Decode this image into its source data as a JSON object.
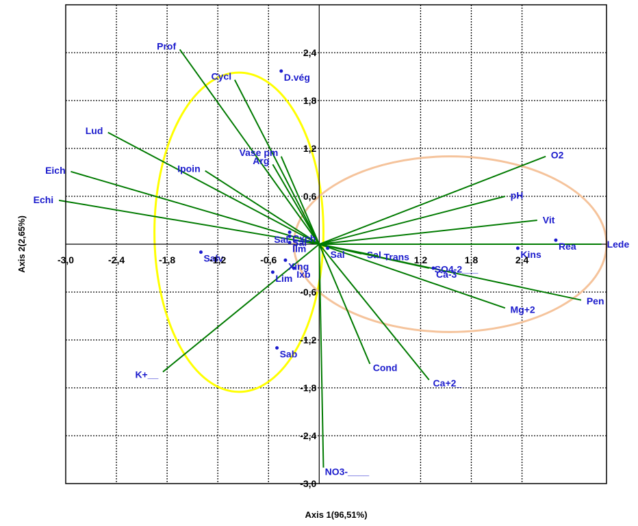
{
  "chart_data": {
    "type": "scatter",
    "subtype": "biplot",
    "xlabel": "Axis 1(96,51%)",
    "ylabel": "Axis 2(2,65%)",
    "xlim": [
      -3.0,
      3.4
    ],
    "ylim": [
      -3.0,
      3.0
    ],
    "x_ticks": [
      "-3,0",
      "-2,4",
      "-1,8",
      "-1,2",
      "-0,6",
      "1,2",
      "1,8",
      "2,4"
    ],
    "x_tick_values": [
      -3.0,
      -2.4,
      -1.8,
      -1.2,
      -0.6,
      1.2,
      1.8,
      2.4
    ],
    "y_ticks": [
      "2,4",
      "1,8",
      "1,2",
      "0,6",
      "-0,6",
      "-1,2",
      "-1,8",
      "-2,4",
      "-3,0"
    ],
    "y_tick_values": [
      2.4,
      1.8,
      1.2,
      0.6,
      -0.6,
      -1.2,
      -1.8,
      -2.4,
      -3.0
    ],
    "grid": true,
    "line_color": "#007a00",
    "label_color": "#1a1acc",
    "vectors": [
      {
        "label": "Prof",
        "x": -1.65,
        "y": 2.44
      },
      {
        "label": "Cycl",
        "x": -1.0,
        "y": 2.06
      },
      {
        "label": "Lud",
        "x": -2.5,
        "y": 1.4
      },
      {
        "label": "Eich",
        "x": -2.94,
        "y": 0.91
      },
      {
        "label": "Echi",
        "x": -3.08,
        "y": 0.55
      },
      {
        "label": "Ipoin",
        "x": -1.35,
        "y": 0.92
      },
      {
        "label": "Arg",
        "x": -0.55,
        "y": 1.0
      },
      {
        "label": "Vase pm",
        "x": -0.45,
        "y": 1.1
      },
      {
        "label": "O2",
        "x": 2.68,
        "y": 1.1
      },
      {
        "label": "pH",
        "x": 2.2,
        "y": 0.6
      },
      {
        "label": "Vit",
        "x": 2.58,
        "y": 0.3
      },
      {
        "label": "Lede",
        "x": 3.34,
        "y": 0.0
      },
      {
        "label": "Pen",
        "x": 3.1,
        "y": -0.7
      },
      {
        "label": "Mg+2",
        "x": 2.2,
        "y": -0.8
      },
      {
        "label": "Ca+2_",
        "x": 1.3,
        "y": -1.7
      },
      {
        "label": "Cond",
        "x": 0.6,
        "y": -1.5
      },
      {
        "label": "NO3-____",
        "x": 0.05,
        "y": -2.8
      },
      {
        "label": "K+__",
        "x": -1.85,
        "y": -1.6
      },
      {
        "label": "SO4-2___",
        "x": 1.3,
        "y": -0.3
      },
      {
        "label": "Sal",
        "x": 0.5,
        "y": -0.12
      },
      {
        "label": "Trans",
        "x": 0.7,
        "y": -0.15
      },
      {
        "label": "Sal",
        "x": -0.3,
        "y": 0.05
      }
    ],
    "points": [
      {
        "label": "D.vég",
        "x": -0.45,
        "y": 2.17
      },
      {
        "label": "Rea",
        "x": 2.8,
        "y": 0.05
      },
      {
        "label": "Kins",
        "x": 2.35,
        "y": -0.05
      },
      {
        "label": "Lim",
        "x": -0.55,
        "y": -0.35
      },
      {
        "label": "Sab",
        "x": -0.5,
        "y": -1.3
      },
      {
        "label": "Salv",
        "x": -1.4,
        "y": -0.1
      },
      {
        "label": "Xing",
        "x": -0.4,
        "y": -0.2
      },
      {
        "label": "Sal",
        "x": 0.1,
        "y": -0.05
      },
      {
        "label": "Sal",
        "x": -0.35,
        "y": 0.1
      },
      {
        "label": "Ca-3",
        "x": 1.35,
        "y": -0.3
      },
      {
        "label": "Ilm",
        "x": -0.35,
        "y": 0.02
      },
      {
        "label": "Ixb",
        "x": -0.3,
        "y": -0.3
      },
      {
        "label": "Cxch",
        "x": -0.35,
        "y": 0.15
      }
    ],
    "ellipses": [
      {
        "cx": -0.95,
        "cy": 0.15,
        "rx": 1.0,
        "ry": 2.0,
        "color": "#ffff00"
      },
      {
        "cx": 1.55,
        "cy": 0.0,
        "rx": 1.85,
        "ry": 1.1,
        "color": "#f5c39b"
      }
    ]
  }
}
